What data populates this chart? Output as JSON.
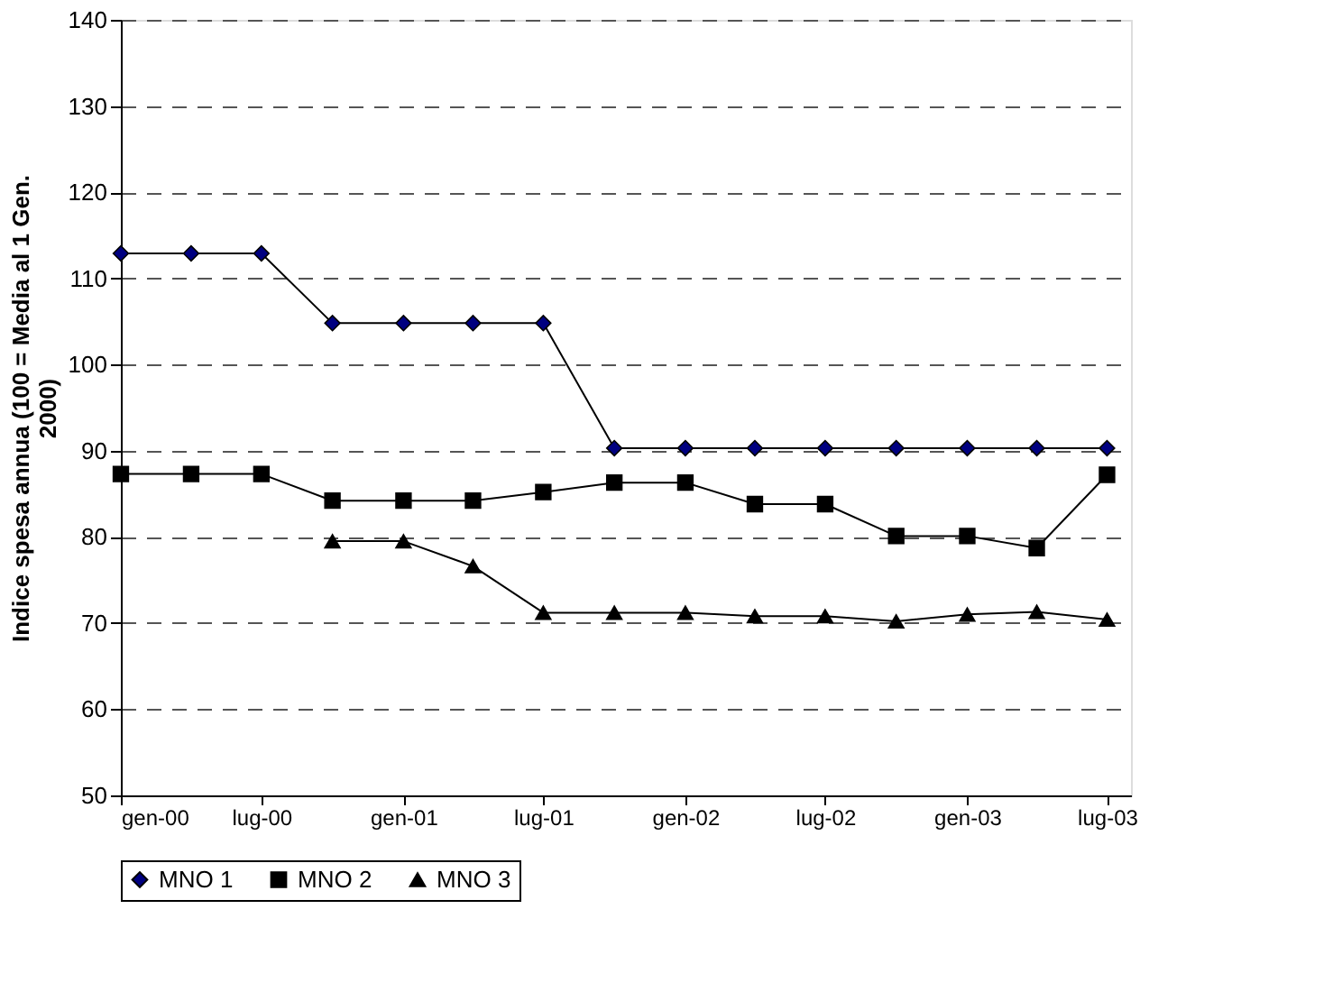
{
  "chart_data": {
    "type": "line",
    "ylabel": "Indice spesa annua (100 = Media al 1 Gen. 2000)",
    "x": [
      "2000-01",
      "2000-04",
      "2000-07",
      "2000-10",
      "2001-01",
      "2001-04",
      "2001-07",
      "2001-10",
      "2002-01",
      "2002-04",
      "2002-07",
      "2002-10",
      "2003-01",
      "2003-04",
      "2003-07"
    ],
    "series": [
      {
        "name": "MNO 1",
        "color": "#000080",
        "marker": "diamond",
        "values": [
          112.9,
          112.9,
          112.9,
          104.8,
          104.8,
          104.8,
          104.8,
          90.3,
          90.3,
          90.3,
          90.3,
          90.3,
          90.3,
          90.3,
          90.3
        ]
      },
      {
        "name": "MNO 2",
        "color": "#000000",
        "marker": "square",
        "values": [
          87.3,
          87.3,
          87.3,
          84.2,
          84.2,
          84.2,
          85.2,
          86.3,
          86.3,
          83.8,
          83.8,
          80.1,
          80.1,
          78.7,
          87.2
        ]
      },
      {
        "name": "MNO 3",
        "color": "#000000",
        "marker": "triangle",
        "values": [
          null,
          null,
          null,
          79.5,
          79.5,
          76.6,
          71.2,
          71.2,
          71.2,
          70.8,
          70.8,
          70.2,
          71.0,
          71.3,
          70.4
        ]
      }
    ],
    "xlim": [
      "2000-01-01",
      "2003-08-01"
    ],
    "xticks": [
      {
        "value": "2000-01",
        "label": "gen-00"
      },
      {
        "value": "2000-07",
        "label": "lug-00"
      },
      {
        "value": "2001-01",
        "label": "gen-01"
      },
      {
        "value": "2001-07",
        "label": "lug-01"
      },
      {
        "value": "2002-01",
        "label": "gen-02"
      },
      {
        "value": "2002-07",
        "label": "lug-02"
      },
      {
        "value": "2003-01",
        "label": "gen-03"
      },
      {
        "value": "2003-07",
        "label": "lug-03"
      }
    ],
    "ylim": [
      50,
      140
    ],
    "yticks": [
      50,
      60,
      70,
      80,
      90,
      100,
      110,
      120,
      130,
      140
    ],
    "grid": "y",
    "legend": "bottom",
    "line_style": "solid"
  }
}
